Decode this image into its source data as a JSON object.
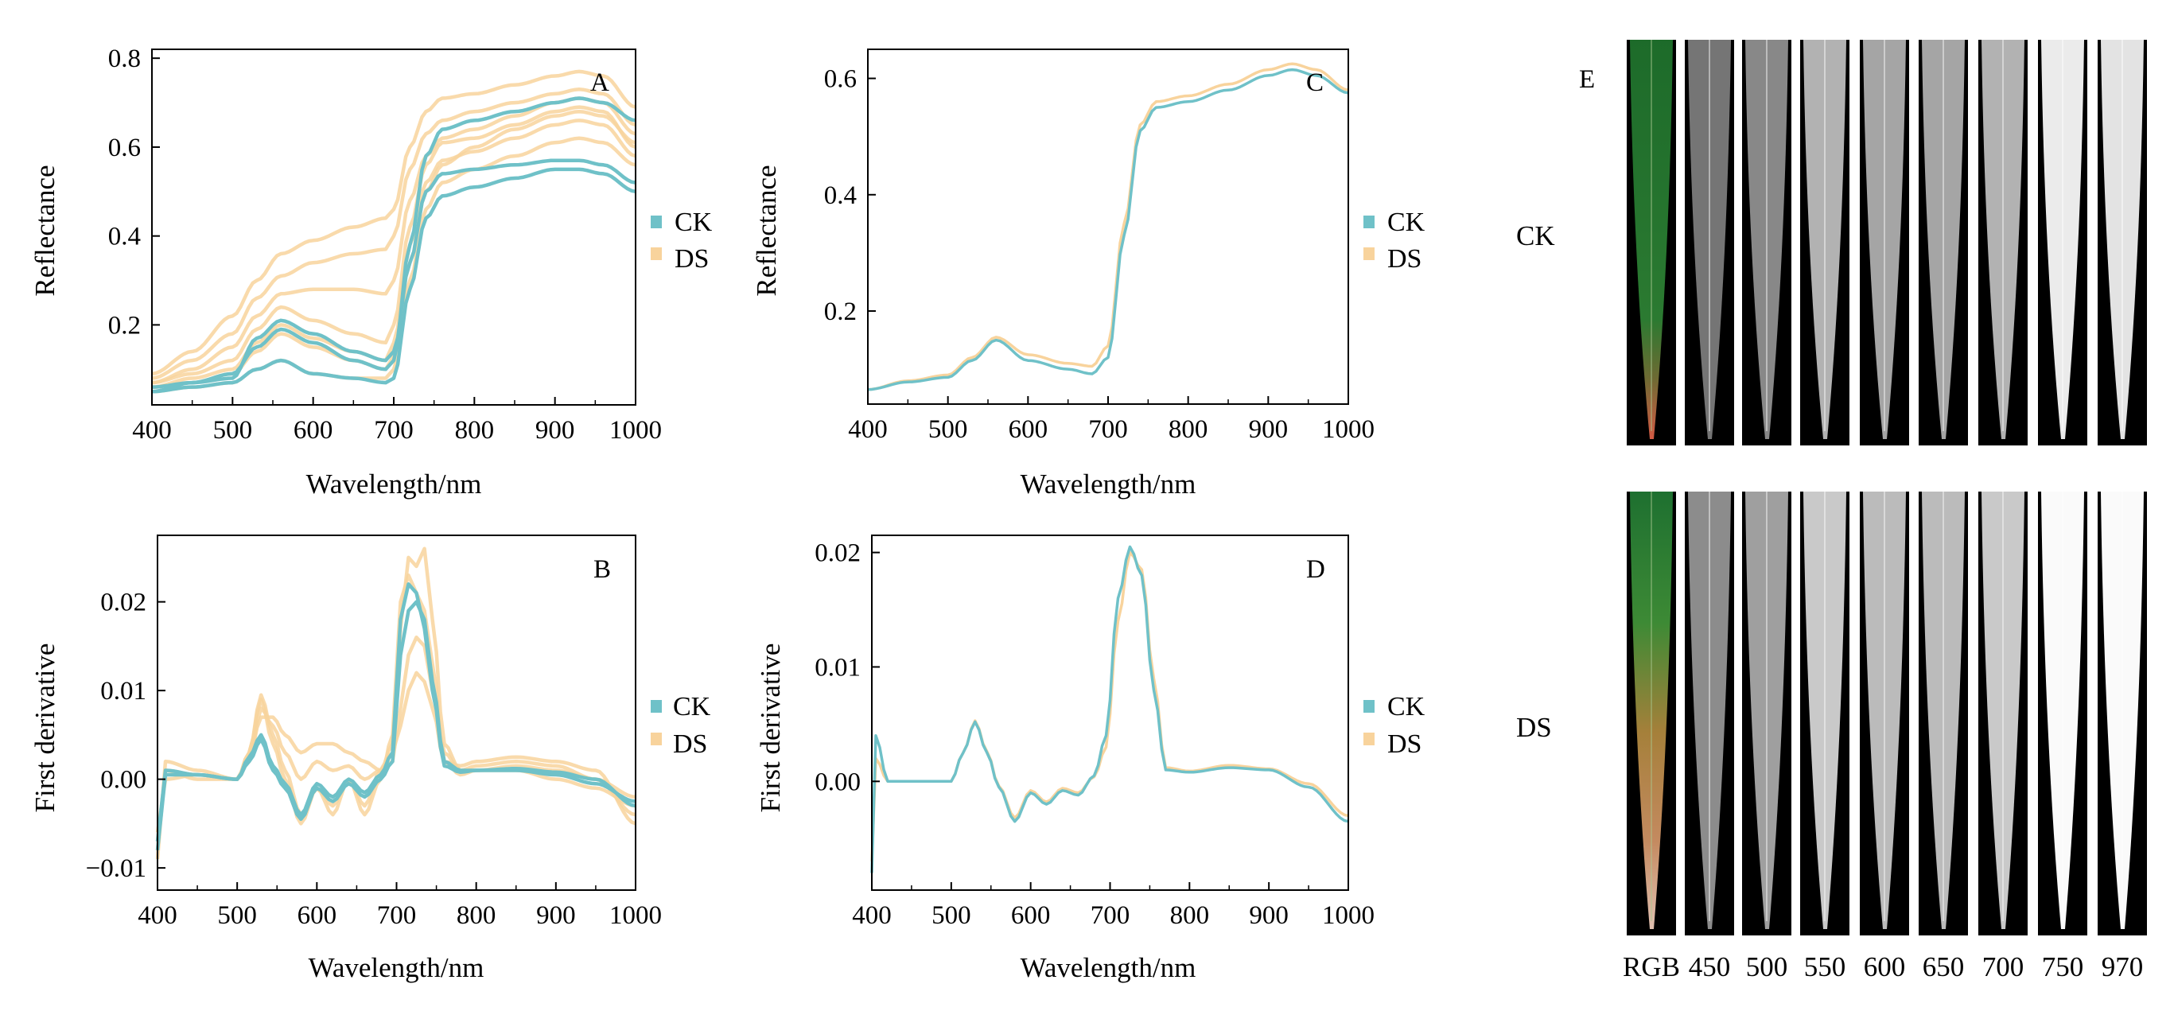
{
  "figure": {
    "colors": {
      "CK": "#6fc1c8",
      "DS": "#f8d39c",
      "axis": "#000000"
    }
  },
  "chart_data": [
    {
      "id": "A",
      "type": "line",
      "panel_label": "A",
      "xlabel": "Wavelength/nm",
      "ylabel": "Reflectance",
      "xlim": [
        400,
        1000
      ],
      "ylim": [
        0.02,
        0.82
      ],
      "xticks": [
        400,
        500,
        600,
        700,
        800,
        900,
        1000
      ],
      "yticks": [
        0.2,
        0.4,
        0.6,
        0.8
      ],
      "ytick_labels": [
        "0.2",
        "0.4",
        "0.6",
        "0.8"
      ],
      "legend": [
        "CK",
        "DS"
      ],
      "legend_position": "right",
      "x": [
        400,
        450,
        500,
        530,
        560,
        600,
        650,
        690,
        700,
        720,
        740,
        760,
        800,
        850,
        900,
        930,
        960,
        1000
      ],
      "series": [
        {
          "name": "DS",
          "values": [
            0.07,
            0.09,
            0.12,
            0.19,
            0.24,
            0.21,
            0.18,
            0.16,
            0.2,
            0.42,
            0.56,
            0.61,
            0.62,
            0.65,
            0.68,
            0.69,
            0.68,
            0.6
          ]
        },
        {
          "name": "DS",
          "values": [
            0.06,
            0.08,
            0.1,
            0.16,
            0.2,
            0.17,
            0.14,
            0.12,
            0.16,
            0.38,
            0.52,
            0.57,
            0.59,
            0.62,
            0.65,
            0.66,
            0.65,
            0.58
          ]
        },
        {
          "name": "DS",
          "values": [
            0.08,
            0.12,
            0.18,
            0.26,
            0.31,
            0.34,
            0.36,
            0.37,
            0.4,
            0.55,
            0.63,
            0.66,
            0.68,
            0.7,
            0.72,
            0.73,
            0.72,
            0.65
          ]
        },
        {
          "name": "DS",
          "values": [
            0.09,
            0.14,
            0.22,
            0.3,
            0.36,
            0.39,
            0.42,
            0.44,
            0.46,
            0.6,
            0.68,
            0.71,
            0.72,
            0.74,
            0.76,
            0.77,
            0.76,
            0.69
          ]
        },
        {
          "name": "DS",
          "values": [
            0.07,
            0.1,
            0.15,
            0.22,
            0.27,
            0.28,
            0.28,
            0.27,
            0.3,
            0.48,
            0.58,
            0.62,
            0.64,
            0.67,
            0.7,
            0.71,
            0.7,
            0.63
          ]
        },
        {
          "name": "DS",
          "values": [
            0.05,
            0.06,
            0.07,
            0.1,
            0.12,
            0.09,
            0.08,
            0.08,
            0.1,
            0.3,
            0.46,
            0.52,
            0.55,
            0.58,
            0.61,
            0.62,
            0.61,
            0.56
          ]
        },
        {
          "name": "DS",
          "values": [
            0.06,
            0.07,
            0.09,
            0.14,
            0.18,
            0.15,
            0.12,
            0.1,
            0.13,
            0.34,
            0.5,
            0.56,
            0.6,
            0.64,
            0.67,
            0.68,
            0.67,
            0.61
          ]
        },
        {
          "name": "CK",
          "values": [
            0.05,
            0.06,
            0.07,
            0.1,
            0.12,
            0.09,
            0.08,
            0.07,
            0.08,
            0.28,
            0.44,
            0.49,
            0.51,
            0.53,
            0.55,
            0.55,
            0.54,
            0.5
          ]
        },
        {
          "name": "CK",
          "values": [
            0.05,
            0.07,
            0.08,
            0.17,
            0.21,
            0.18,
            0.14,
            0.12,
            0.14,
            0.34,
            0.5,
            0.54,
            0.55,
            0.56,
            0.57,
            0.57,
            0.56,
            0.52
          ]
        },
        {
          "name": "CK",
          "values": [
            0.06,
            0.07,
            0.09,
            0.15,
            0.19,
            0.16,
            0.12,
            0.1,
            0.12,
            0.38,
            0.58,
            0.64,
            0.66,
            0.68,
            0.7,
            0.71,
            0.7,
            0.66
          ]
        }
      ]
    },
    {
      "id": "B",
      "type": "line",
      "panel_label": "B",
      "xlabel": "Wavelength/nm",
      "ylabel": "First derivative",
      "xlim": [
        400,
        1000
      ],
      "ylim": [
        -0.0125,
        0.0275
      ],
      "xticks": [
        400,
        500,
        600,
        700,
        800,
        900,
        1000
      ],
      "yticks": [
        -0.01,
        0.0,
        0.01,
        0.02
      ],
      "ytick_labels": [
        "−0.01",
        "0.00",
        "0.01",
        "0.02"
      ],
      "legend": [
        "CK",
        "DS"
      ],
      "legend_position": "right",
      "x": [
        400,
        410,
        450,
        500,
        515,
        530,
        545,
        560,
        580,
        600,
        620,
        640,
        660,
        680,
        695,
        705,
        715,
        725,
        735,
        745,
        760,
        780,
        800,
        850,
        900,
        950,
        1000
      ],
      "series": [
        {
          "name": "DS",
          "values": [
            -0.008,
            0.001,
            0.0005,
            0.0,
            0.003,
            0.0095,
            0.005,
            0.001,
            -0.004,
            -0.001,
            -0.003,
            0.0,
            -0.003,
            0.001,
            0.004,
            0.017,
            0.025,
            0.024,
            0.026,
            0.018,
            0.004,
            0.001,
            0.0015,
            0.002,
            0.0015,
            0.0,
            -0.004
          ]
        },
        {
          "name": "DS",
          "values": [
            -0.006,
            0.0,
            0.0005,
            0.0,
            0.002,
            0.008,
            0.006,
            0.003,
            0.0,
            0.002,
            0.001,
            0.0015,
            0.0,
            0.001,
            0.002,
            0.008,
            0.014,
            0.016,
            0.015,
            0.01,
            0.003,
            0.001,
            0.001,
            0.001,
            0.0,
            -0.001,
            -0.003
          ]
        },
        {
          "name": "DS",
          "values": [
            -0.009,
            0.002,
            0.001,
            0.0,
            0.003,
            0.009,
            0.004,
            0.0,
            -0.005,
            -0.001,
            -0.004,
            0.0,
            -0.004,
            0.0,
            0.005,
            0.02,
            0.023,
            0.021,
            0.019,
            0.013,
            0.002,
            0.0015,
            0.002,
            0.0025,
            0.002,
            0.001,
            -0.005
          ]
        },
        {
          "name": "DS",
          "values": [
            -0.007,
            0.001,
            0.0,
            0.0,
            0.0025,
            0.007,
            0.007,
            0.005,
            0.003,
            0.004,
            0.004,
            0.003,
            0.002,
            0.001,
            0.003,
            0.006,
            0.01,
            0.012,
            0.011,
            0.008,
            0.002,
            0.0005,
            0.001,
            0.0015,
            0.001,
            0.0,
            -0.002
          ]
        },
        {
          "name": "CK",
          "values": [
            -0.007,
            0.001,
            0.0005,
            0.0,
            0.002,
            0.0045,
            0.001,
            -0.001,
            -0.0045,
            -0.001,
            -0.0025,
            -0.0005,
            -0.002,
            0.0,
            0.002,
            0.014,
            0.019,
            0.02,
            0.018,
            0.011,
            0.002,
            0.001,
            0.001,
            0.001,
            0.0005,
            -0.0005,
            -0.0025
          ]
        },
        {
          "name": "CK",
          "values": [
            -0.008,
            0.0005,
            0.0005,
            0.0,
            0.0025,
            0.005,
            0.0015,
            -0.0005,
            -0.004,
            -0.0005,
            -0.002,
            0.0,
            -0.0015,
            0.0005,
            0.003,
            0.018,
            0.022,
            0.021,
            0.017,
            0.01,
            0.0015,
            0.0008,
            0.001,
            0.0012,
            0.0008,
            0.0,
            -0.003
          ]
        }
      ]
    },
    {
      "id": "C",
      "type": "line",
      "panel_label": "C",
      "xlabel": "Wavelength/nm",
      "ylabel": "Reflectance",
      "xlim": [
        400,
        1000
      ],
      "ylim": [
        0.04,
        0.65
      ],
      "xticks": [
        400,
        500,
        600,
        700,
        800,
        900,
        1000
      ],
      "yticks": [
        0.2,
        0.4,
        0.6
      ],
      "ytick_labels": [
        "0.2",
        "0.4",
        "0.6"
      ],
      "legend": [
        "CK",
        "DS"
      ],
      "legend_position": "right",
      "x": [
        400,
        450,
        500,
        530,
        560,
        600,
        650,
        680,
        700,
        720,
        740,
        760,
        800,
        850,
        900,
        930,
        960,
        1000
      ],
      "series": [
        {
          "name": "DS",
          "values": [
            0.065,
            0.08,
            0.09,
            0.12,
            0.155,
            0.125,
            0.11,
            0.105,
            0.14,
            0.35,
            0.52,
            0.56,
            0.57,
            0.59,
            0.615,
            0.625,
            0.615,
            0.58
          ]
        },
        {
          "name": "CK",
          "values": [
            0.065,
            0.078,
            0.086,
            0.115,
            0.15,
            0.115,
            0.1,
            0.092,
            0.12,
            0.33,
            0.51,
            0.55,
            0.56,
            0.58,
            0.605,
            0.615,
            0.605,
            0.575
          ]
        }
      ]
    },
    {
      "id": "D",
      "type": "line",
      "panel_label": "D",
      "xlabel": "Wavelength/nm",
      "ylabel": "First derivative",
      "xlim": [
        400,
        1000
      ],
      "ylim": [
        -0.0095,
        0.0215
      ],
      "xticks": [
        400,
        500,
        600,
        700,
        800,
        900,
        1000
      ],
      "yticks": [
        0.0,
        0.01,
        0.02
      ],
      "ytick_labels": [
        "0.00",
        "0.01",
        "0.02"
      ],
      "legend": [
        "CK",
        "DS"
      ],
      "legend_position": "right",
      "x": [
        400,
        405,
        420,
        450,
        500,
        515,
        530,
        545,
        560,
        580,
        600,
        620,
        640,
        660,
        680,
        695,
        710,
        725,
        740,
        755,
        770,
        800,
        850,
        900,
        950,
        1000
      ],
      "series": [
        {
          "name": "CK",
          "values": [
            -0.008,
            0.004,
            0.0,
            0.0,
            0.0,
            0.0025,
            0.0052,
            0.0025,
            -0.0005,
            -0.0035,
            -0.001,
            -0.002,
            -0.0008,
            -0.0012,
            0.0005,
            0.004,
            0.016,
            0.0205,
            0.018,
            0.008,
            0.001,
            0.0008,
            0.0012,
            0.001,
            -0.0005,
            -0.0035
          ]
        },
        {
          "name": "DS",
          "values": [
            -0.007,
            0.002,
            0.0,
            0.0,
            0.0,
            0.0025,
            0.0053,
            0.0026,
            -0.0004,
            -0.0032,
            -0.0008,
            -0.0018,
            -0.0006,
            -0.001,
            0.0004,
            0.003,
            0.014,
            0.02,
            0.0185,
            0.009,
            0.0012,
            0.0009,
            0.0014,
            0.0011,
            -0.0002,
            -0.003
          ]
        }
      ]
    }
  ],
  "panel_E": {
    "panel_label": "E",
    "rows": [
      {
        "name": "CK",
        "label": "CK"
      },
      {
        "name": "DS",
        "label": "DS"
      }
    ],
    "bands": [
      "RGB",
      "450",
      "500",
      "550",
      "600",
      "650",
      "700",
      "750",
      "970"
    ],
    "band_brightness": [
      0.0,
      0.3,
      0.4,
      0.62,
      0.55,
      0.55,
      0.62,
      0.92,
      0.88
    ]
  }
}
